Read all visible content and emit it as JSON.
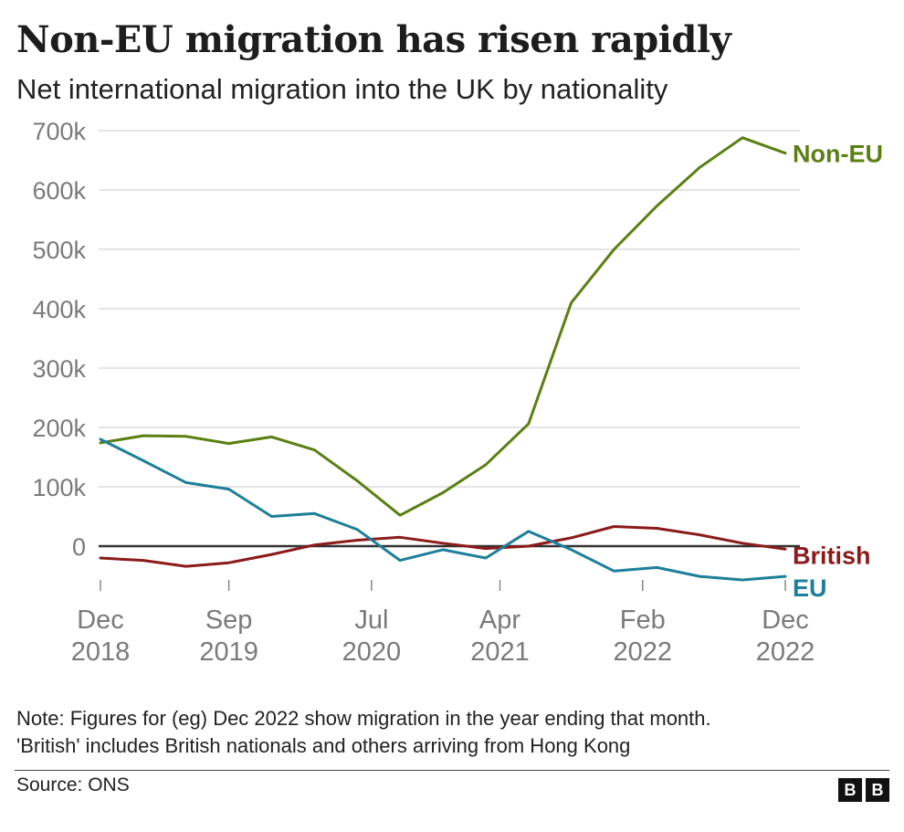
{
  "header": {
    "title": "Non-EU migration has risen rapidly",
    "subtitle": "Net international migration into the UK by nationality"
  },
  "chart_data": {
    "type": "line",
    "x": [
      "Dec 2018",
      "Mar 2019",
      "Jun 2019",
      "Sep 2019",
      "Dec 2019",
      "Mar 2020",
      "Jun 2020",
      "Sep 2020",
      "Dec 2020",
      "Mar 2021",
      "Jun 2021",
      "Sep 2021",
      "Dec 2021",
      "Mar 2022",
      "Jun 2022",
      "Sep 2022",
      "Dec 2022"
    ],
    "x_tick_labels": [
      {
        "x": "Dec 2018",
        "line1": "Dec",
        "line2": "2018"
      },
      {
        "x": "Sep 2019",
        "line1": "Sep",
        "line2": "2019"
      },
      {
        "x": "Jul 2020",
        "line1": "Jul",
        "line2": "2020"
      },
      {
        "x": "Apr 2021",
        "line1": "Apr",
        "line2": "2021"
      },
      {
        "x": "Feb 2022",
        "line1": "Feb",
        "line2": "2022"
      },
      {
        "x": "Dec 2022",
        "line1": "Dec",
        "line2": "2022"
      }
    ],
    "ylim": [
      -70000,
      700000
    ],
    "y_ticks": [
      0,
      100000,
      200000,
      300000,
      400000,
      500000,
      600000,
      700000
    ],
    "y_tick_labels": [
      "0",
      "100k",
      "200k",
      "300k",
      "400k",
      "500k",
      "600k",
      "700k"
    ],
    "grid": true,
    "legend": "direct labels at line ends",
    "series": [
      {
        "name": "Non-EU",
        "color": "#5a7f12",
        "values": [
          174000,
          186000,
          185000,
          173000,
          184000,
          162000,
          110000,
          52000,
          90000,
          137000,
          206000,
          410000,
          500000,
          573000,
          638000,
          688000,
          662000
        ]
      },
      {
        "name": "British",
        "color": "#8b1a1a",
        "values": [
          -20000,
          -24000,
          -34000,
          -28000,
          -14000,
          2000,
          10000,
          15000,
          5000,
          -4000,
          0,
          14000,
          33000,
          30000,
          19000,
          5000,
          -5000
        ]
      },
      {
        "name": "EU",
        "color": "#1d7f99",
        "values": [
          180000,
          144000,
          107000,
          96000,
          50000,
          55000,
          28000,
          -24000,
          -6000,
          -20000,
          25000,
          -6000,
          -42000,
          -36000,
          -51000,
          -57000,
          -51000
        ]
      }
    ]
  },
  "footer": {
    "note_line1": "Note: Figures for (eg) Dec 2022 show migration in the year ending that month.",
    "note_line2": "'British' includes British nationals and others arriving from Hong Kong",
    "source": "Source: ONS",
    "logo_letters": [
      "B",
      "B"
    ]
  }
}
